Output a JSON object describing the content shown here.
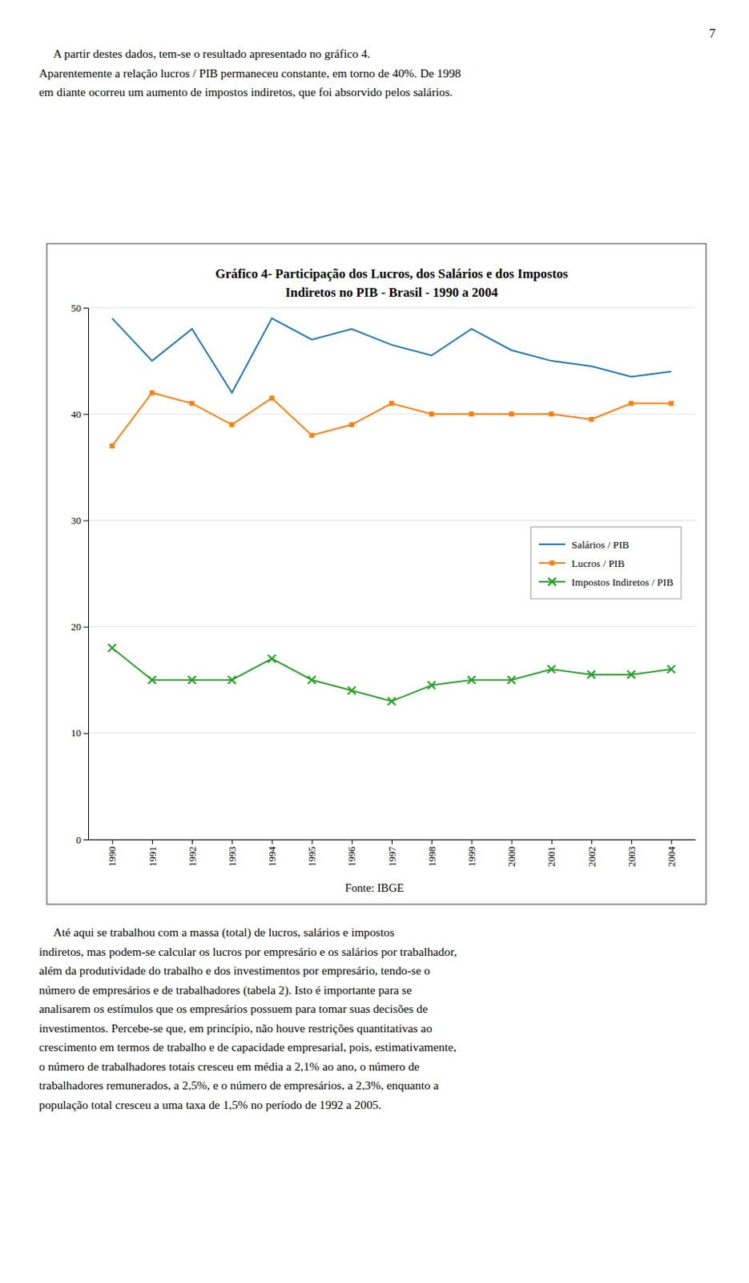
{
  "chart_data": {
    "type": "line",
    "title": "Gráfico 4- Participação dos Lucros, dos Salários e dos Impostos\nIndiretos no PIB - Brasil - 1990 a 2004",
    "x": [
      1990,
      1991,
      1992,
      1993,
      1994,
      1995,
      1996,
      1997,
      1998,
      1999,
      2000,
      2001,
      2002,
      2003,
      2004
    ],
    "series": [
      {
        "name": "Salários / PIB",
        "marker": "none",
        "values": [
          49.0,
          45.0,
          48.0,
          42.0,
          49.0,
          47.0,
          48.0,
          46.5,
          45.5,
          48.0,
          46.0,
          45.0,
          44.5,
          43.5,
          44.0
        ]
      },
      {
        "name": "Lucros / PIB",
        "marker": "square",
        "values": [
          37.0,
          42.0,
          41.0,
          39.0,
          41.5,
          38.0,
          39.0,
          41.0,
          40.0,
          40.0,
          40.0,
          40.0,
          39.5,
          41.0,
          41.0
        ]
      },
      {
        "name": "Impostos Indiretos / PIB",
        "marker": "x",
        "values": [
          18.0,
          15.0,
          15.0,
          15.0,
          17.0,
          15.0,
          14.0,
          13.0,
          14.5,
          15.0,
          15.0,
          16.0,
          15.5,
          15.5,
          16.0
        ]
      }
    ],
    "xlim": [
      1989.4,
      2004.6
    ],
    "xticks": [
      1990,
      1991,
      1992,
      1993,
      1994,
      1995,
      1996,
      1997,
      1998,
      1999,
      2000,
      2001,
      2002,
      2003,
      2004
    ],
    "ylim": [
      0,
      50
    ],
    "yticks": [
      0,
      10,
      20,
      30,
      40,
      50
    ],
    "grid": "y",
    "legend": "right",
    "annotations": [
      "Fonte: IBGE"
    ]
  },
  "page_text": {
    "page_number": "7",
    "top_lines": [
      "     A partir destes dados, tem-se o resultado apresentado no gráfico 4.",
      "Aparentemente a relação lucros / PIB permaneceu constante, em torno de 40%. De 1998",
      "em diante ocorreu um aumento de impostos indiretos, que foi absorvido pelos salários."
    ],
    "bottom_lines": [
      "     Até aqui se trabalhou com a massa (total) de lucros, salários e impostos",
      "indiretos, mas podem-se calcular os lucros por empresário e os salários por trabalhador,",
      "além da produtividade do trabalho e dos investimentos por empresário, tendo-se o",
      "número de empresários e de trabalhadores (tabela 2). Isto é importante para se",
      "analisarem os estímulos que os empresários possuem para tomar suas decisões de",
      "investimentos. Percebe-se que, em princípio, não houve restrições quantitativas ao",
      "crescimento em termos de trabalho e de capacidade empresarial, pois, estimativamente,",
      "o número de trabalhadores totais cresceu em média a 2,1% ao ano, o número de",
      "trabalhadores remunerados, a 2,5%, e o número de empresários, a 2,3%, enquanto a",
      "população total cresceu a uma taxa de 1,5% no período de 1992 a 2005."
    ]
  }
}
